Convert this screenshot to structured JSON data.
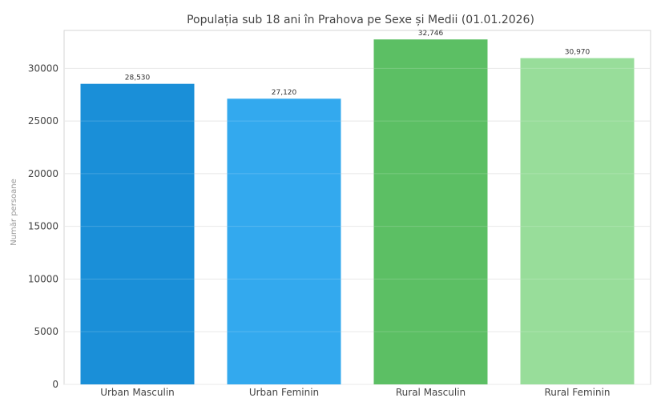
{
  "chart_data": {
    "type": "bar",
    "title": "Populația sub 18 ani în Prahova pe Sexe și Medii (01.01.2026)",
    "xlabel": "",
    "ylabel": "Număr persoane",
    "categories": [
      "Urban Masculin",
      "Urban Feminin",
      "Rural Masculin",
      "Rural Feminin"
    ],
    "values": [
      28530,
      27120,
      32746,
      30970
    ],
    "value_labels": [
      "28,530",
      "27,120",
      "32,746",
      "30,970"
    ],
    "colors": [
      "#1a8fd8",
      "#33a9ee",
      "#5cbf64",
      "#98dd9a"
    ],
    "ylim": [
      0,
      33600
    ],
    "yticks": [
      0,
      5000,
      10000,
      15000,
      20000,
      25000,
      30000
    ],
    "ytick_labels": [
      "0",
      "5000",
      "10000",
      "15000",
      "20000",
      "25000",
      "30000"
    ],
    "grid": true,
    "legend": "none"
  }
}
